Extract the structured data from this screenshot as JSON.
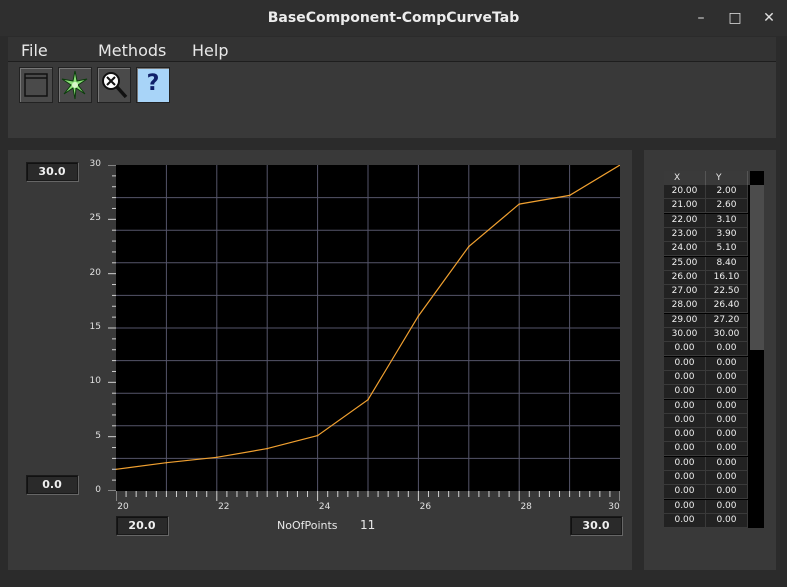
{
  "window": {
    "title": "BaseComponent-CompCurveTab",
    "minimize": "–",
    "maximize": "□",
    "close": "✕"
  },
  "menu": {
    "file": "File",
    "methods": "Methods",
    "help": "Help"
  },
  "toolbar": {
    "help_glyph": "?"
  },
  "plot": {
    "y_max": "30.0",
    "y_min": "0.0",
    "x_min": "20.0",
    "x_max": "30.0",
    "n_points_label": "NoOfPoints",
    "n_points_value": "11"
  },
  "chart_data": {
    "type": "line",
    "x": [
      20,
      21,
      22,
      23,
      24,
      25,
      26,
      27,
      28,
      29,
      30
    ],
    "y": [
      2.0,
      2.6,
      3.1,
      3.9,
      5.1,
      8.4,
      16.1,
      22.5,
      26.4,
      27.2,
      30.0
    ],
    "xlim": [
      20,
      30
    ],
    "ylim": [
      0,
      30
    ],
    "x_ticks": [
      "20",
      "22",
      "24",
      "26",
      "28",
      "30"
    ],
    "y_ticks": [
      "0",
      "5",
      "10",
      "15",
      "20",
      "25",
      "30"
    ],
    "line_color": "#f0a030",
    "grid": true
  },
  "table": {
    "headers": [
      "X",
      "Y"
    ],
    "rows": [
      [
        "20.00",
        "2.00"
      ],
      [
        "21.00",
        "2.60"
      ],
      [
        "22.00",
        "3.10"
      ],
      [
        "23.00",
        "3.90"
      ],
      [
        "24.00",
        "5.10"
      ],
      [
        "25.00",
        "8.40"
      ],
      [
        "26.00",
        "16.10"
      ],
      [
        "27.00",
        "22.50"
      ],
      [
        "28.00",
        "26.40"
      ],
      [
        "29.00",
        "27.20"
      ],
      [
        "30.00",
        "30.00"
      ],
      [
        "0.00",
        "0.00"
      ],
      [
        "0.00",
        "0.00"
      ],
      [
        "0.00",
        "0.00"
      ],
      [
        "0.00",
        "0.00"
      ],
      [
        "0.00",
        "0.00"
      ],
      [
        "0.00",
        "0.00"
      ],
      [
        "0.00",
        "0.00"
      ],
      [
        "0.00",
        "0.00"
      ],
      [
        "0.00",
        "0.00"
      ],
      [
        "0.00",
        "0.00"
      ],
      [
        "0.00",
        "0.00"
      ],
      [
        "0.00",
        "0.00"
      ],
      [
        "0.00",
        "0.00"
      ]
    ]
  }
}
